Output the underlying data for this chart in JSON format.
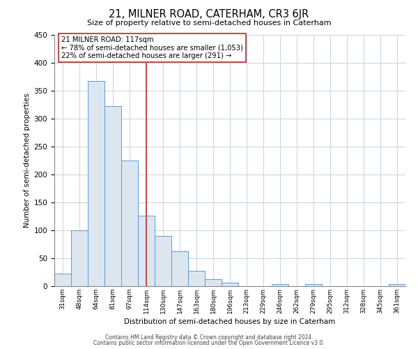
{
  "title": "21, MILNER ROAD, CATERHAM, CR3 6JR",
  "subtitle": "Size of property relative to semi-detached houses in Caterham",
  "xlabel": "Distribution of semi-detached houses by size in Caterham",
  "ylabel": "Number of semi-detached properties",
  "bin_labels": [
    "31sqm",
    "48sqm",
    "64sqm",
    "81sqm",
    "97sqm",
    "114sqm",
    "130sqm",
    "147sqm",
    "163sqm",
    "180sqm",
    "196sqm",
    "213sqm",
    "229sqm",
    "246sqm",
    "262sqm",
    "279sqm",
    "295sqm",
    "312sqm",
    "328sqm",
    "345sqm",
    "361sqm"
  ],
  "bar_heights": [
    22,
    100,
    367,
    322,
    225,
    126,
    90,
    63,
    28,
    12,
    6,
    0,
    0,
    4,
    0,
    4,
    0,
    0,
    0,
    0,
    4
  ],
  "bar_color": "#dce6f1",
  "bar_edge_color": "#5b9bd5",
  "vline_color": "#c0504d",
  "vline_x_index": 5,
  "annotation_text_line1": "21 MILNER ROAD: 117sqm",
  "annotation_text_line2": "← 78% of semi-detached houses are smaller (1,053)",
  "annotation_text_line3": "22% of semi-detached houses are larger (291) →",
  "box_edge_color": "#c0504d",
  "ylim": [
    0,
    450
  ],
  "yticks": [
    0,
    50,
    100,
    150,
    200,
    250,
    300,
    350,
    400,
    450
  ],
  "footer_line1": "Contains HM Land Registry data © Crown copyright and database right 2024.",
  "footer_line2": "Contains public sector information licensed under the Open Government Licence v3.0.",
  "background_color": "#ffffff",
  "grid_color": "#c8d8e8"
}
